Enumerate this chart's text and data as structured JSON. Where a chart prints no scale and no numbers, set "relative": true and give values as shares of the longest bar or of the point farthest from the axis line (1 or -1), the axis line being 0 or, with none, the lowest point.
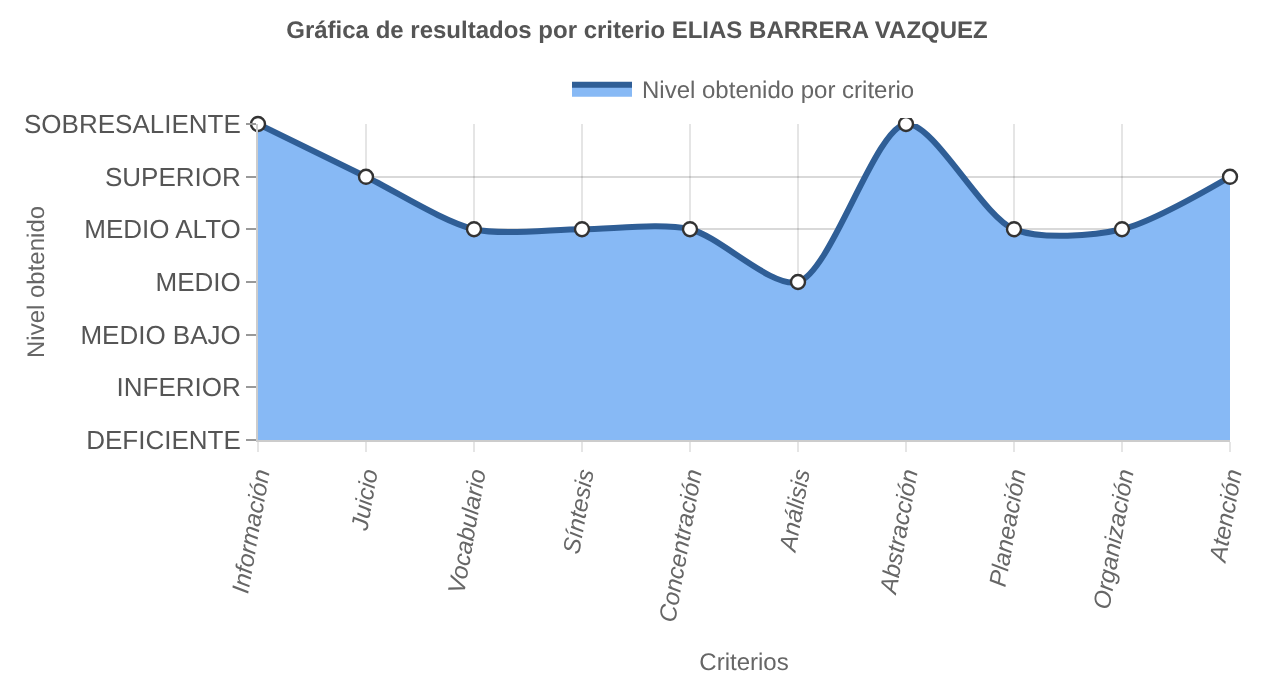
{
  "chart_data": {
    "type": "area",
    "title": "Gráfica de resultados por criterio ELIAS BARRERA VAZQUEZ",
    "xlabel": "Criterios",
    "annotations": [
      "Nivel obtenido"
    ],
    "categories": [
      "Información",
      "Juicio",
      "Vocabulario",
      "Síntesis",
      "Concentración",
      "Análisis",
      "Abstracción",
      "Planeación",
      "Organización",
      "Atención"
    ],
    "y_categories": [
      "SOBRESALIENTE",
      "SUPERIOR",
      "MEDIO ALTO",
      "MEDIO",
      "MEDIO BAJO",
      "INFERIOR",
      "DEFICIENTE"
    ],
    "relative": true,
    "series": [
      {
        "name": "Nivel obtenido por criterio",
        "color": "#2f5e96",
        "values": [
          1,
          0.833,
          0.667,
          0.667,
          0.667,
          0.5,
          1,
          0.667,
          0.667,
          0.833
        ]
      }
    ],
    "grid": true,
    "legend": "top",
    "marker": "circle"
  }
}
